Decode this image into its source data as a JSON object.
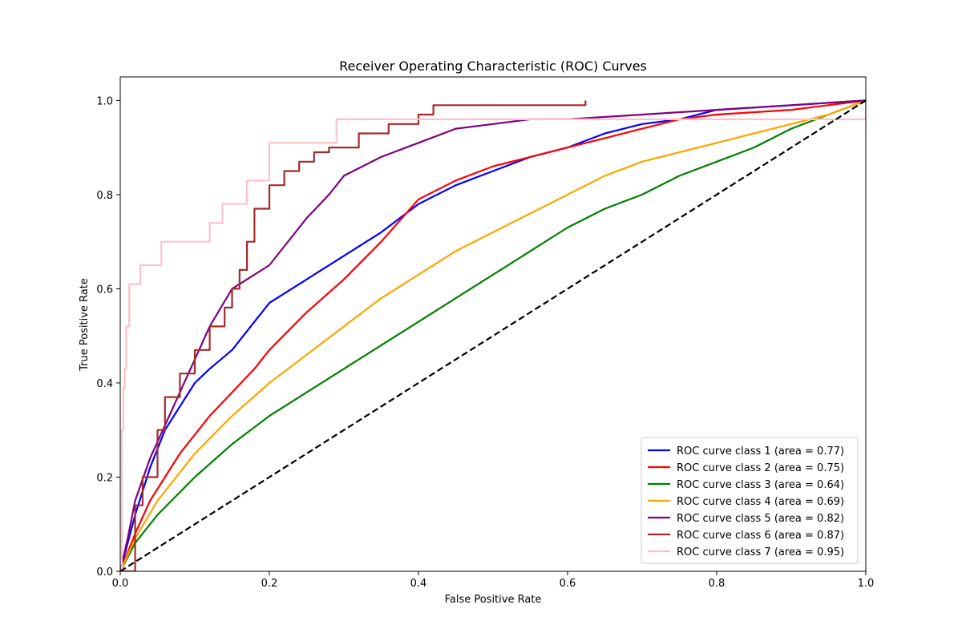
{
  "chart_data": {
    "type": "line",
    "title": "Receiver Operating Characteristic (ROC) Curves",
    "xlabel": "False Positive Rate",
    "ylabel": "True Positive Rate",
    "xlim": [
      0.0,
      1.0
    ],
    "ylim": [
      0.0,
      1.05
    ],
    "x_ticks": [
      0.0,
      0.2,
      0.4,
      0.6,
      0.8,
      1.0
    ],
    "x_tick_labels": [
      "0.0",
      "0.2",
      "0.4",
      "0.6",
      "0.8",
      "1.0"
    ],
    "y_ticks": [
      0.0,
      0.2,
      0.4,
      0.6,
      0.8,
      1.0
    ],
    "y_tick_labels": [
      "0.0",
      "0.2",
      "0.4",
      "0.6",
      "0.8",
      "1.0"
    ],
    "grid": false,
    "legend_position": "bottom-right",
    "series": [
      {
        "name": "ROC curve class 1 (area = 0.77)",
        "color": "#0000ff",
        "step": false,
        "x": [
          0.0,
          0.01,
          0.02,
          0.04,
          0.06,
          0.08,
          0.1,
          0.12,
          0.15,
          0.18,
          0.2,
          0.25,
          0.3,
          0.35,
          0.4,
          0.45,
          0.5,
          0.55,
          0.6,
          0.65,
          0.7,
          0.75,
          0.8,
          0.9,
          1.0
        ],
        "y": [
          0.0,
          0.06,
          0.12,
          0.22,
          0.3,
          0.35,
          0.4,
          0.43,
          0.47,
          0.53,
          0.57,
          0.62,
          0.67,
          0.72,
          0.78,
          0.82,
          0.85,
          0.88,
          0.9,
          0.93,
          0.95,
          0.96,
          0.98,
          0.99,
          1.0
        ]
      },
      {
        "name": "ROC curve class 2 (area = 0.75)",
        "color": "#ff0000",
        "step": false,
        "x": [
          0.0,
          0.01,
          0.02,
          0.04,
          0.06,
          0.08,
          0.1,
          0.12,
          0.15,
          0.18,
          0.2,
          0.25,
          0.3,
          0.35,
          0.4,
          0.45,
          0.5,
          0.55,
          0.6,
          0.65,
          0.7,
          0.75,
          0.8,
          0.9,
          1.0
        ],
        "y": [
          0.0,
          0.04,
          0.08,
          0.15,
          0.2,
          0.25,
          0.29,
          0.33,
          0.38,
          0.43,
          0.47,
          0.55,
          0.62,
          0.7,
          0.79,
          0.83,
          0.86,
          0.88,
          0.9,
          0.92,
          0.94,
          0.96,
          0.97,
          0.98,
          1.0
        ]
      },
      {
        "name": "ROC curve class 3 (area = 0.64)",
        "color": "#008000",
        "step": false,
        "x": [
          0.0,
          0.02,
          0.05,
          0.1,
          0.15,
          0.2,
          0.25,
          0.3,
          0.35,
          0.4,
          0.45,
          0.5,
          0.55,
          0.6,
          0.65,
          0.7,
          0.75,
          0.8,
          0.85,
          0.9,
          0.95,
          1.0
        ],
        "y": [
          0.0,
          0.06,
          0.12,
          0.2,
          0.27,
          0.33,
          0.38,
          0.43,
          0.48,
          0.53,
          0.58,
          0.63,
          0.68,
          0.73,
          0.77,
          0.8,
          0.84,
          0.87,
          0.9,
          0.94,
          0.97,
          1.0
        ]
      },
      {
        "name": "ROC curve class 4 (area = 0.69)",
        "color": "#ffa500",
        "step": false,
        "x": [
          0.0,
          0.02,
          0.05,
          0.1,
          0.15,
          0.2,
          0.25,
          0.3,
          0.35,
          0.4,
          0.45,
          0.5,
          0.55,
          0.6,
          0.65,
          0.7,
          0.75,
          0.8,
          0.85,
          0.9,
          0.95,
          1.0
        ],
        "y": [
          0.0,
          0.07,
          0.15,
          0.25,
          0.33,
          0.4,
          0.46,
          0.52,
          0.58,
          0.63,
          0.68,
          0.72,
          0.76,
          0.8,
          0.84,
          0.87,
          0.89,
          0.91,
          0.93,
          0.95,
          0.97,
          1.0
        ]
      },
      {
        "name": "ROC curve class 5 (area = 0.82)",
        "color": "#800080",
        "step": false,
        "x": [
          0.0,
          0.01,
          0.02,
          0.04,
          0.06,
          0.08,
          0.1,
          0.12,
          0.15,
          0.18,
          0.2,
          0.22,
          0.25,
          0.28,
          0.3,
          0.35,
          0.4,
          0.45,
          0.5,
          0.55,
          0.6,
          0.7,
          0.8,
          0.9,
          1.0
        ],
        "y": [
          0.0,
          0.07,
          0.15,
          0.24,
          0.31,
          0.38,
          0.45,
          0.52,
          0.6,
          0.63,
          0.65,
          0.69,
          0.75,
          0.8,
          0.84,
          0.88,
          0.91,
          0.94,
          0.95,
          0.96,
          0.96,
          0.97,
          0.98,
          0.99,
          1.0
        ]
      },
      {
        "name": "ROC curve class 6 (area = 0.87)",
        "color": "#a52a2a",
        "step": true,
        "x": [
          0.0,
          0.02,
          0.03,
          0.05,
          0.06,
          0.08,
          0.1,
          0.12,
          0.14,
          0.15,
          0.16,
          0.17,
          0.18,
          0.2,
          0.22,
          0.24,
          0.26,
          0.28,
          0.3,
          0.32,
          0.36,
          0.4,
          0.42,
          0.5,
          0.55,
          0.62,
          0.624
        ],
        "y": [
          0.0,
          0.14,
          0.2,
          0.3,
          0.37,
          0.42,
          0.47,
          0.52,
          0.56,
          0.6,
          0.64,
          0.7,
          0.77,
          0.82,
          0.85,
          0.87,
          0.89,
          0.9,
          0.9,
          0.93,
          0.95,
          0.97,
          0.99,
          0.99,
          0.99,
          0.99,
          1.0
        ]
      },
      {
        "name": "ROC curve class 7 (area = 0.95)",
        "color": "#ffc0cb",
        "step": true,
        "x": [
          0.0,
          0.002,
          0.004,
          0.006,
          0.008,
          0.012,
          0.027,
          0.055,
          0.12,
          0.137,
          0.17,
          0.2,
          0.29,
          1.0
        ],
        "y": [
          0.0,
          0.3,
          0.39,
          0.43,
          0.52,
          0.61,
          0.65,
          0.7,
          0.74,
          0.78,
          0.83,
          0.91,
          0.96,
          1.0
        ]
      }
    ],
    "reference_line": {
      "x": [
        0.0,
        1.0
      ],
      "y": [
        0.0,
        1.0
      ],
      "color": "#000000",
      "style": "dashed"
    }
  }
}
